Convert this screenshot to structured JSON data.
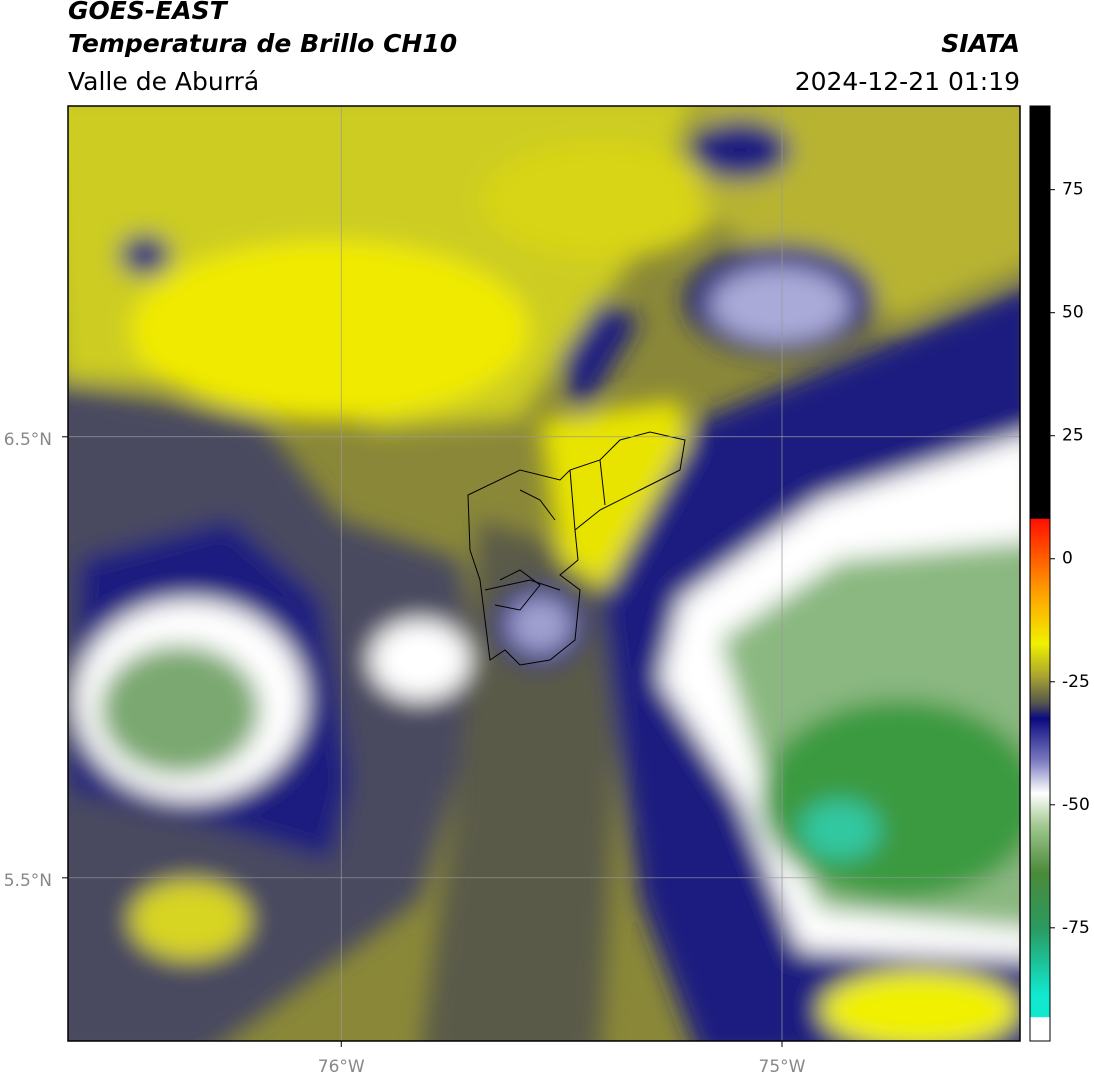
{
  "header": {
    "title": "GOES-EAST",
    "subtitle": "Temperatura de Brillo CH10",
    "region": "Valle de Aburrá",
    "source": "SIATA",
    "datetime": "2024-12-21 01:19"
  },
  "map": {
    "xlim": [
      -76.62,
      -74.46
    ],
    "ylim": [
      5.13,
      7.25
    ],
    "xticks": [
      {
        "value": -76,
        "label": "76°W"
      },
      {
        "value": -75,
        "label": "75°W"
      }
    ],
    "yticks": [
      {
        "value": 6.5,
        "label": "6.5°N"
      },
      {
        "value": 5.5,
        "label": "5.5°N"
      }
    ]
  },
  "colorbar": {
    "lim": [
      -98,
      92
    ],
    "ticks": [
      75,
      50,
      25,
      0,
      -25,
      -50,
      -75
    ]
  }
}
